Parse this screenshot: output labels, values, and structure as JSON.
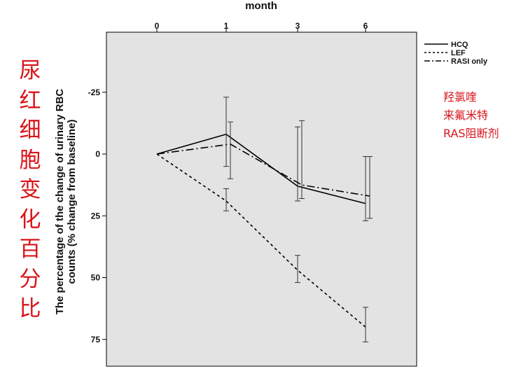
{
  "chart_data": {
    "type": "line",
    "title": "",
    "xlabel": "month",
    "ylabel_line1": "The percentage of the change of urinary RBC",
    "ylabel_line2": "counts (% change from baseline)",
    "x_ticks": [
      "0",
      "1",
      "3",
      "6"
    ],
    "y_ticks": [
      -25,
      0,
      25,
      50,
      75
    ],
    "y_tick_labels": [
      "-25",
      "0",
      "25",
      "50",
      "75"
    ],
    "ylim": [
      -50,
      87
    ],
    "y_inverted": true,
    "grid": false,
    "legend_position": "top-right outside",
    "series": [
      {
        "name": "HCQ",
        "dash": "solid",
        "values": [
          0,
          -8,
          13,
          20
        ],
        "error_low": [
          null,
          -23,
          19,
          27
        ],
        "error_high": [
          null,
          5,
          -11,
          1
        ],
        "offset": 0
      },
      {
        "name": "LEF",
        "dash": "dashed",
        "values": [
          0,
          19,
          47,
          70
        ],
        "error_low": [
          null,
          14,
          41,
          62
        ],
        "error_high": [
          null,
          23,
          52,
          76
        ],
        "offset": 0
      },
      {
        "name": "RASI only",
        "dash": "dashdot",
        "values": [
          0,
          -4,
          12.5,
          17
        ],
        "error_low": [
          null,
          -13,
          18,
          26
        ],
        "error_high": [
          null,
          10,
          -13.5,
          1
        ],
        "offset": 1
      }
    ]
  },
  "annotations": {
    "left_vertical": [
      "尿",
      "红",
      "细",
      "胞",
      "变",
      "化",
      "百",
      "分",
      "比"
    ],
    "right_legend": [
      "羟氯喹",
      "来氟米特",
      "RAS阻断剂"
    ]
  }
}
